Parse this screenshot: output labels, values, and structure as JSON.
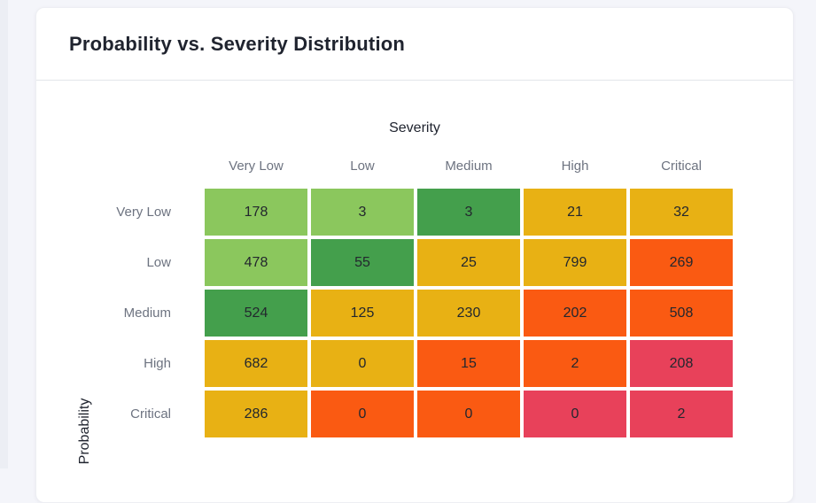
{
  "card": {
    "title": "Probability vs. Severity Distribution"
  },
  "chart_data": {
    "type": "heatmap",
    "title": "Probability vs. Severity Distribution",
    "xlabel": "Severity",
    "ylabel": "Probability",
    "x_categories": [
      "Very Low",
      "Low",
      "Medium",
      "High",
      "Critical"
    ],
    "y_categories": [
      "Very Low",
      "Low",
      "Medium",
      "High",
      "Critical"
    ],
    "rows": [
      {
        "label": "Very Low",
        "values": [
          178,
          3,
          3,
          21,
          32
        ],
        "colors": [
          "lightgreen",
          "lightgreen",
          "darkgreen",
          "amber",
          "amber"
        ]
      },
      {
        "label": "Low",
        "values": [
          478,
          55,
          25,
          799,
          269
        ],
        "colors": [
          "lightgreen",
          "darkgreen",
          "amber",
          "amber",
          "orange"
        ]
      },
      {
        "label": "Medium",
        "values": [
          524,
          125,
          230,
          202,
          508
        ],
        "colors": [
          "darkgreen",
          "amber",
          "amber",
          "orange",
          "orange"
        ]
      },
      {
        "label": "High",
        "values": [
          682,
          0,
          15,
          2,
          208
        ],
        "colors": [
          "amber",
          "amber",
          "orange",
          "orange",
          "red"
        ]
      },
      {
        "label": "Critical",
        "values": [
          286,
          0,
          0,
          0,
          2
        ],
        "colors": [
          "amber",
          "orange",
          "orange",
          "red",
          "red"
        ]
      }
    ],
    "palette": {
      "lightgreen": "#8bc75d",
      "darkgreen": "#449f4c",
      "amber": "#e8b114",
      "orange": "#fa5a12",
      "red": "#e8415a"
    },
    "grid_gap_color": "#ffffff",
    "legend": "none"
  }
}
